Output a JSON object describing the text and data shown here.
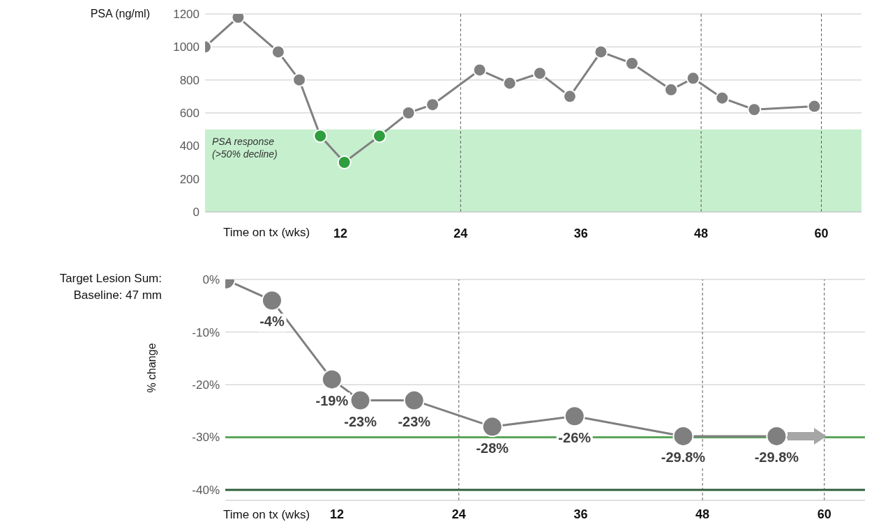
{
  "chart_data": [
    {
      "type": "line",
      "ylabel": "PSA (ng/ml)",
      "xlabel": "Time on tx (wks)",
      "x": [
        -1.5,
        1.8,
        5.8,
        7.9,
        10.0,
        12.4,
        15.9,
        18.8,
        21.2,
        25.9,
        28.9,
        31.9,
        34.9,
        38.0,
        41.1,
        45.0,
        47.2,
        50.1,
        53.3,
        59.3
      ],
      "series": [
        {
          "color": "#808080",
          "colors": [
            "#808080",
            "#808080",
            "#808080",
            "#808080",
            "#2e9e3e",
            "#2e9e3e",
            "#2e9e3e",
            "#808080",
            "#808080",
            "#808080",
            "#808080",
            "#808080",
            "#808080",
            "#808080",
            "#808080",
            "#808080",
            "#808080",
            "#808080",
            "#808080",
            "#808080"
          ],
          "values": [
            1000,
            1180,
            970,
            800,
            460,
            300,
            460,
            600,
            650,
            860,
            780,
            840,
            700,
            970,
            900,
            740,
            810,
            690,
            620,
            640
          ]
        }
      ],
      "xlim": [
        -1.5,
        64
      ],
      "xticks": [
        12,
        24,
        36,
        48,
        60
      ],
      "ylim": [
        0,
        1200
      ],
      "yticks": [
        0,
        200,
        400,
        600,
        800,
        1000,
        1200
      ],
      "grid": "y",
      "marker": "circle",
      "bands": [
        {
          "axis": "y",
          "from": 0,
          "to": 500,
          "label": "PSA response\n(>50% decline)",
          "color": "#c6efce"
        }
      ],
      "ref_lines": [
        {
          "axis": "x",
          "value": 24,
          "line_style": "dashed",
          "color": "#595959"
        },
        {
          "axis": "x",
          "value": 48,
          "line_style": "dashed",
          "color": "#595959"
        },
        {
          "axis": "x",
          "value": 60,
          "line_style": "dashed",
          "color": "#595959"
        }
      ]
    },
    {
      "type": "line",
      "title": "Target Lesion Sum:\nBaseline: 47 mm",
      "ylabel": "% change",
      "xlabel": "Time on tx (wks)",
      "x": [
        1,
        5.6,
        11.5,
        14.3,
        19.6,
        27.3,
        35.4,
        46.1,
        55.3
      ],
      "series": [
        {
          "color": "#7f7f7f",
          "values": [
            0,
            -4,
            -19,
            -23,
            -23,
            -28,
            -26,
            -29.8,
            -29.8
          ],
          "value_labels": [
            null,
            "-4%",
            "-19%",
            "-23%",
            "-23%",
            "-28%",
            "-26%",
            "-29.8%",
            "-29.8%"
          ]
        }
      ],
      "xlim": [
        1,
        64
      ],
      "xticks": [
        12,
        24,
        36,
        48,
        60
      ],
      "ylim": [
        -42,
        0
      ],
      "yticks": [
        {
          "value": -40,
          "label": "-40%"
        },
        {
          "value": -30,
          "label": "-30%"
        },
        {
          "value": -20,
          "label": "-20%"
        },
        {
          "value": -10,
          "label": "-10%"
        },
        {
          "value": 0,
          "label": "0%"
        }
      ],
      "grid": "y",
      "marker": "circle",
      "ref_lines": [
        {
          "axis": "y",
          "value": -30,
          "line_style": "solid",
          "color": "#5aa55a"
        },
        {
          "axis": "y",
          "value": -40,
          "line_style": "solid",
          "color": "#2e5e3a"
        },
        {
          "axis": "x",
          "value": 24,
          "line_style": "dashed",
          "color": "#595959"
        },
        {
          "axis": "x",
          "value": 48,
          "line_style": "dashed",
          "color": "#595959"
        },
        {
          "axis": "x",
          "value": 60,
          "line_style": "dashed",
          "color": "#595959"
        }
      ]
    }
  ]
}
